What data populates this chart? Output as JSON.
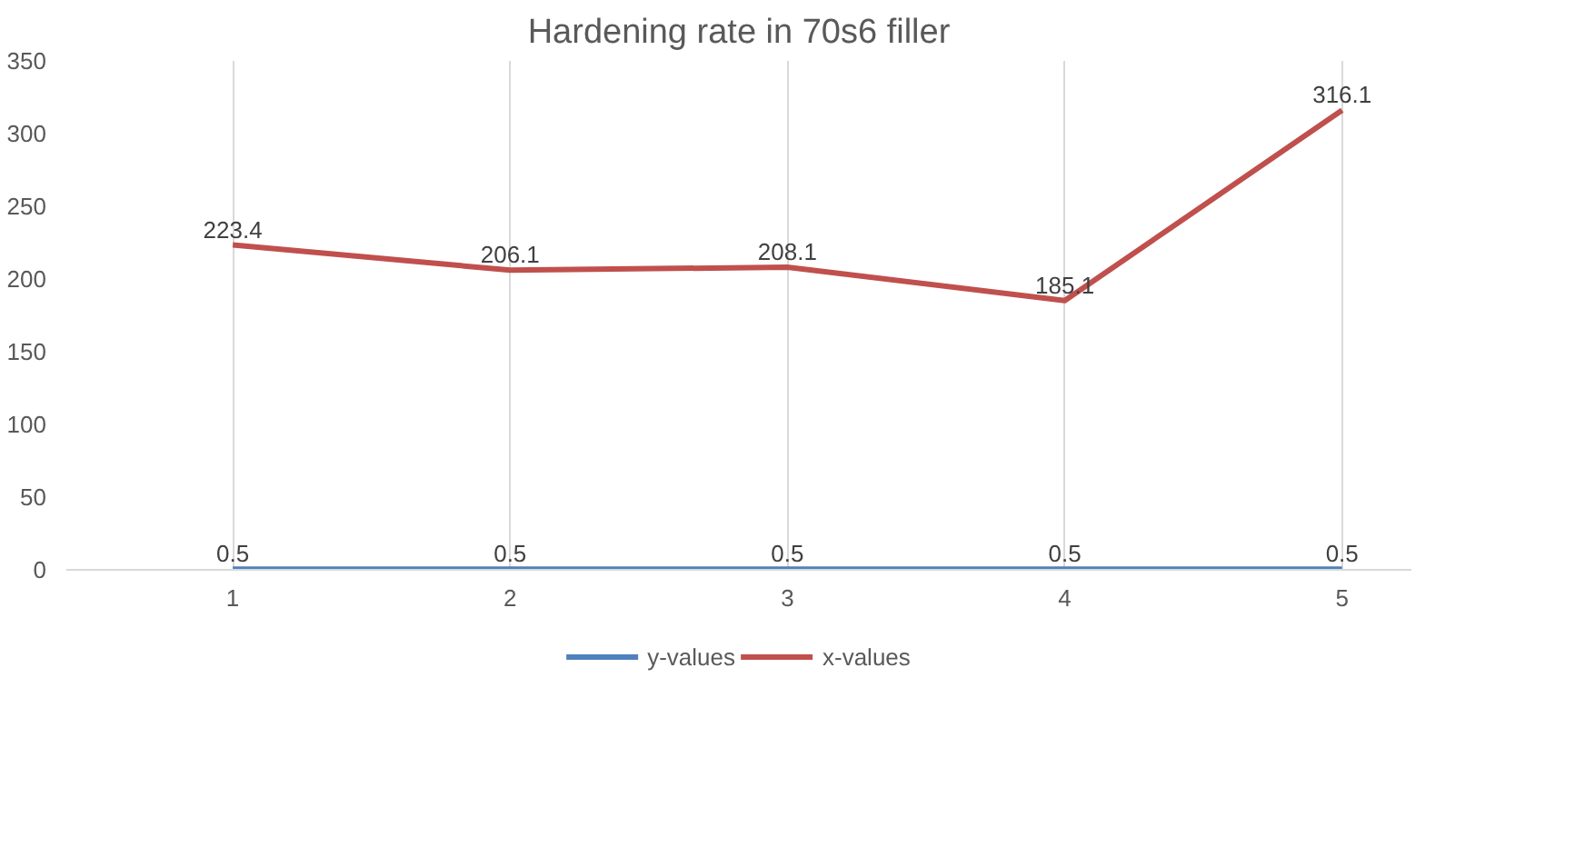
{
  "chart_data": {
    "type": "line",
    "title": "Hardening rate in 70s6 filler",
    "categories": [
      "1",
      "2",
      "3",
      "4",
      "5"
    ],
    "series": [
      {
        "name": "y-values",
        "color": "#4f81bd",
        "values": [
          0.5,
          0.5,
          0.5,
          0.5,
          0.5
        ]
      },
      {
        "name": "x-values",
        "color": "#c0504d",
        "values": [
          223.4,
          206.1,
          208.1,
          185.1,
          316.1
        ]
      }
    ],
    "ylim": [
      0,
      350
    ],
    "yticks": [
      0,
      50,
      100,
      150,
      200,
      250,
      300,
      350
    ],
    "grid": "x",
    "legend": "bottom",
    "data_labels": true,
    "marker": "none",
    "line_style": "solid"
  }
}
